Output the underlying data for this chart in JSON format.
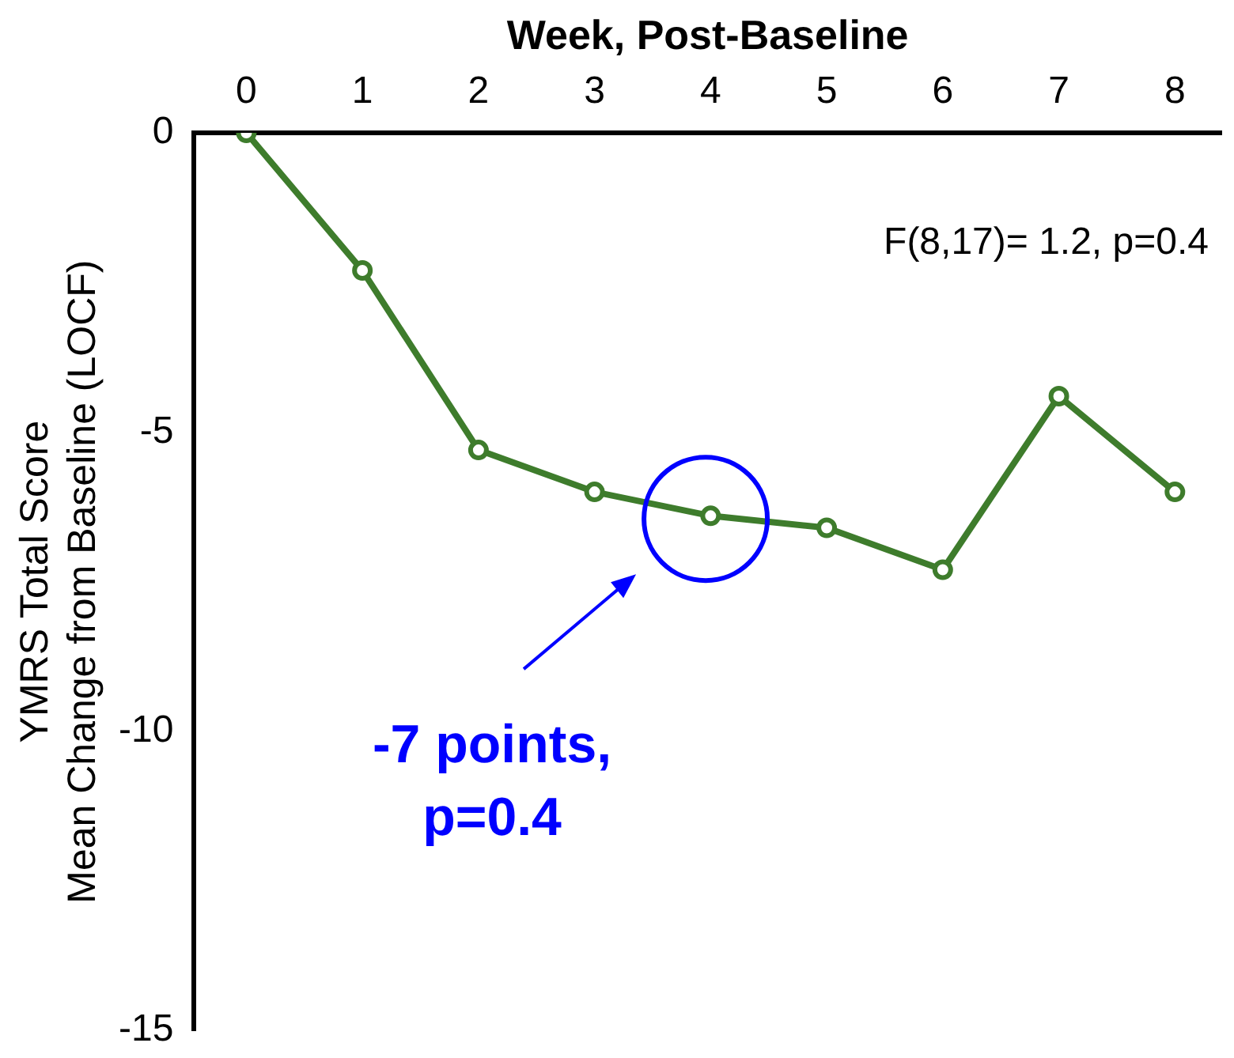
{
  "chart_data": {
    "type": "line",
    "xlabel": "Week, Post-Baseline",
    "ylabel": "YMRS Total Score\nMean Change from Baseline (LOCF)",
    "x": [
      0,
      1,
      2,
      3,
      4,
      5,
      6,
      7,
      8
    ],
    "series": [
      {
        "color": "#3e7c2c",
        "values": [
          0,
          -2.3,
          -5.3,
          -6.0,
          -6.4,
          -6.6,
          -7.3,
          -4.4,
          -6.0
        ]
      }
    ],
    "xlim": [
      -0.45,
      8.4
    ],
    "xticks": [
      0,
      1,
      2,
      3,
      4,
      5,
      6,
      7,
      8
    ],
    "ylim": [
      -15,
      0
    ],
    "yticks": [
      0,
      -5,
      -10,
      -15
    ],
    "grid": false,
    "legend": false,
    "marker": "circle",
    "line_style": "solid",
    "annotations": [
      "F(8,17)= 1.2, p=0.4",
      "-7 points, p=0.4"
    ]
  }
}
